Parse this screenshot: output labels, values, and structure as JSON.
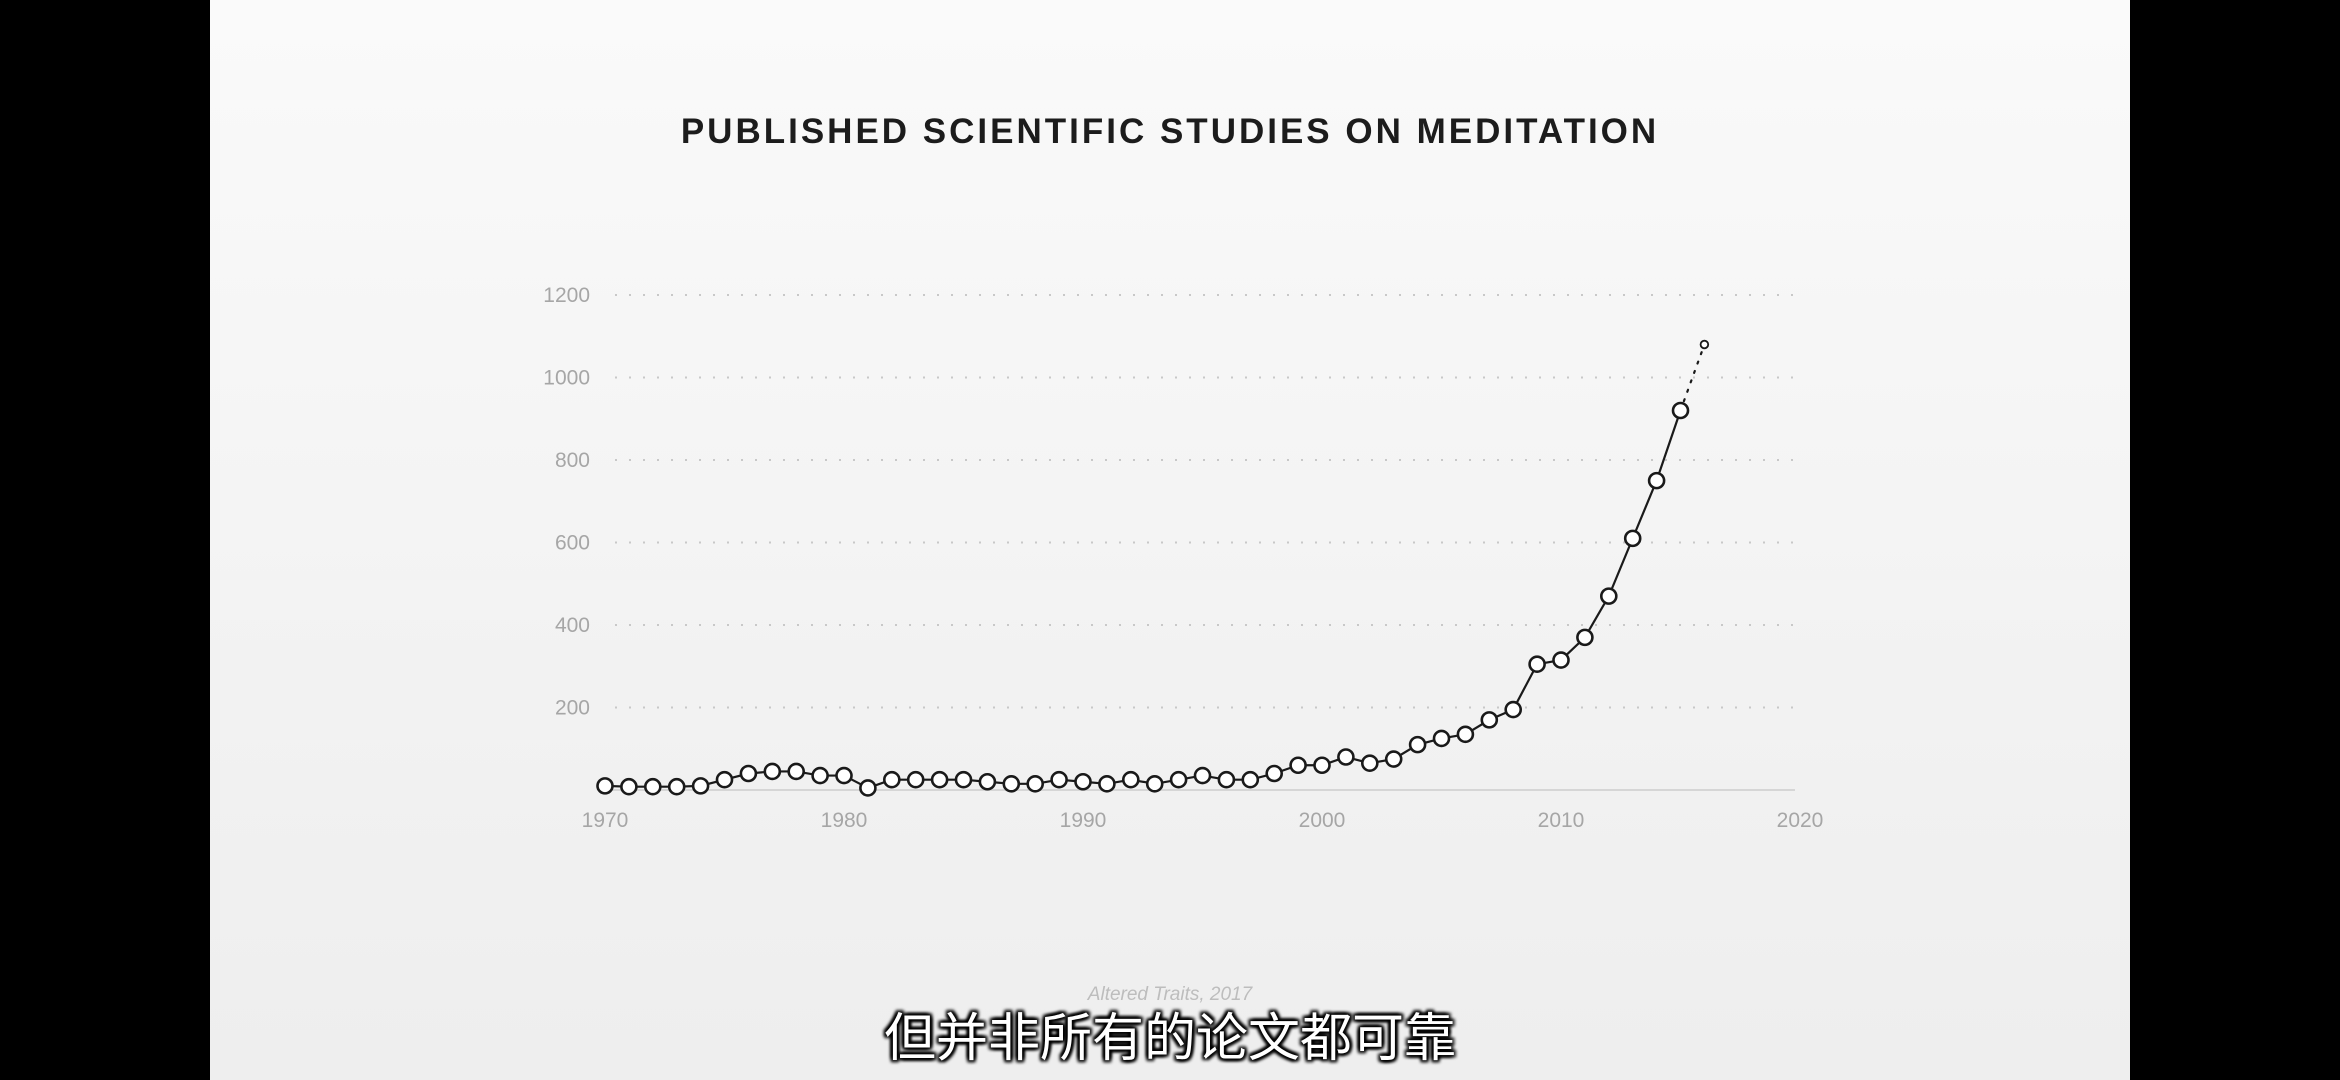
{
  "video": {
    "subtitle": "但并非所有的论文都可靠",
    "source_note": "Altered Traits, 2017"
  },
  "chart_data": {
    "type": "line",
    "title": "PUBLISHED SCIENTIFIC STUDIES ON MEDITATION",
    "xlabel": "",
    "ylabel": "",
    "xlim": [
      1970,
      2020
    ],
    "ylim": [
      0,
      1200
    ],
    "x_ticks": [
      1970,
      1980,
      1990,
      2000,
      2010,
      2020
    ],
    "y_ticks": [
      200,
      400,
      600,
      800,
      1000,
      1200
    ],
    "grid": "horizontal dotted",
    "colors": {
      "line": "#1a1a1a",
      "marker_fill": "#ffffff",
      "grid": "#c8c8c8",
      "tick": "#a6a6a6"
    },
    "series": [
      {
        "x": [
          1970,
          1971,
          1972,
          1973,
          1974,
          1975,
          1976,
          1977,
          1978,
          1979,
          1980,
          1981,
          1982,
          1983,
          1984,
          1985,
          1986,
          1987,
          1988,
          1989,
          1990,
          1991,
          1992,
          1993,
          1994,
          1995,
          1996,
          1997,
          1998,
          1999,
          2000,
          2001,
          2002,
          2003,
          2004,
          2005,
          2006,
          2007,
          2008,
          2009,
          2010,
          2011,
          2012,
          2013,
          2014,
          2015,
          2016
        ],
        "y": [
          10,
          8,
          8,
          8,
          10,
          25,
          40,
          45,
          45,
          35,
          35,
          5,
          25,
          25,
          25,
          25,
          20,
          15,
          15,
          25,
          20,
          15,
          25,
          15,
          25,
          35,
          25,
          25,
          40,
          60,
          60,
          80,
          65,
          75,
          110,
          125,
          135,
          170,
          195,
          305,
          315,
          370,
          470,
          610,
          750,
          920,
          1080
        ],
        "projected_from_index": 45
      }
    ]
  }
}
